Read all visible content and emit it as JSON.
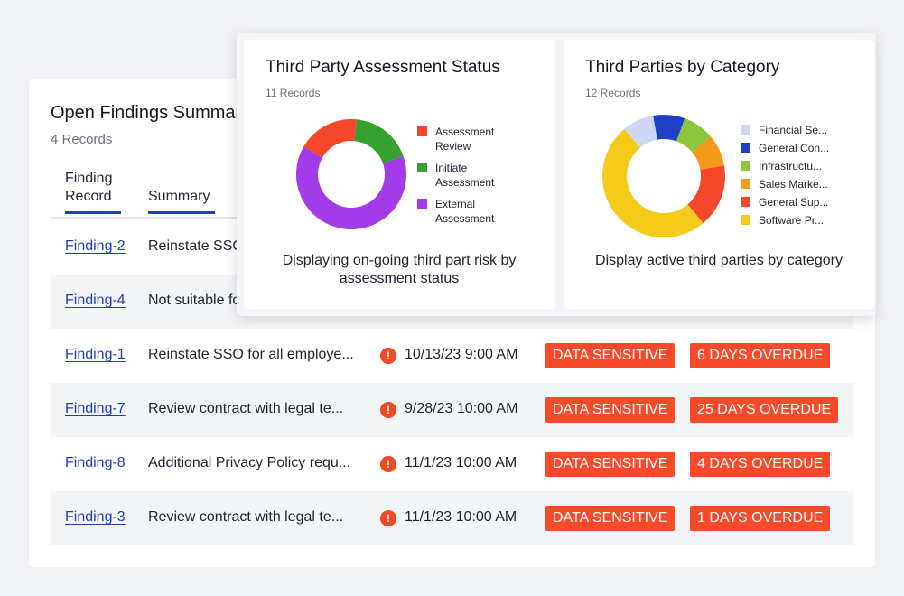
{
  "findings": {
    "title": "Open Findings Summary",
    "count": "4 Records",
    "columns": [
      "Finding Record",
      "Summary"
    ],
    "rows": [
      {
        "id": "Finding-2",
        "summary": "Reinstate SSO for all employees",
        "date": "",
        "badge1": "",
        "badge2": ""
      },
      {
        "id": "Finding-4",
        "summary": "Not suitable for",
        "date": "",
        "badge1": "",
        "badge2": ""
      },
      {
        "id": "Finding-1",
        "summary": "Reinstate SSO for all employe...",
        "date": "10/13/23 9:00 AM",
        "badge1": "DATA SENSITIVE",
        "badge2": "6 DAYS OVERDUE"
      },
      {
        "id": "Finding-7",
        "summary": "Review contract with legal te...",
        "date": "9/28/23 10:00 AM",
        "badge1": "DATA SENSITIVE",
        "badge2": "25 DAYS OVERDUE"
      },
      {
        "id": "Finding-8",
        "summary": "Additional Privacy Policy requ...",
        "date": "11/1/23 10:00 AM",
        "badge1": "DATA SENSITIVE",
        "badge2": "4 DAYS OVERDUE"
      },
      {
        "id": "Finding-3",
        "summary": "Review contract with legal te...",
        "date": "11/1/23 10:00 AM",
        "badge1": "DATA SENSITIVE",
        "badge2": "1 DAYS OVERDUE"
      }
    ],
    "alert_icon": "!"
  },
  "assessment": {
    "title": "Third Party Assessment Status",
    "count": "11 Records",
    "description": "Displaying on-going third part risk by assessment status"
  },
  "category": {
    "title": "Third Parties by Category",
    "count": "12 Records",
    "description": "Display active third parties by category"
  },
  "chart_data": [
    {
      "type": "pie",
      "variant": "donut",
      "categories": [
        "Assessment Review",
        "Initiate Assessment",
        "External Assessment"
      ],
      "values": [
        2,
        2,
        7
      ],
      "colors": [
        "#f5472c",
        "#36a12f",
        "#a23bea"
      ]
    },
    {
      "type": "pie",
      "variant": "donut",
      "categories": [
        "Financial Se...",
        "General Con...",
        "Infrastructu...",
        "Sales Marke...",
        "General Sup...",
        "Software Pr..."
      ],
      "values": [
        1,
        1,
        1,
        1,
        2,
        6
      ],
      "colors": [
        "#ced6f6",
        "#1f3fc9",
        "#8cc63f",
        "#f59a1b",
        "#f5472c",
        "#f4cb1a"
      ]
    }
  ]
}
